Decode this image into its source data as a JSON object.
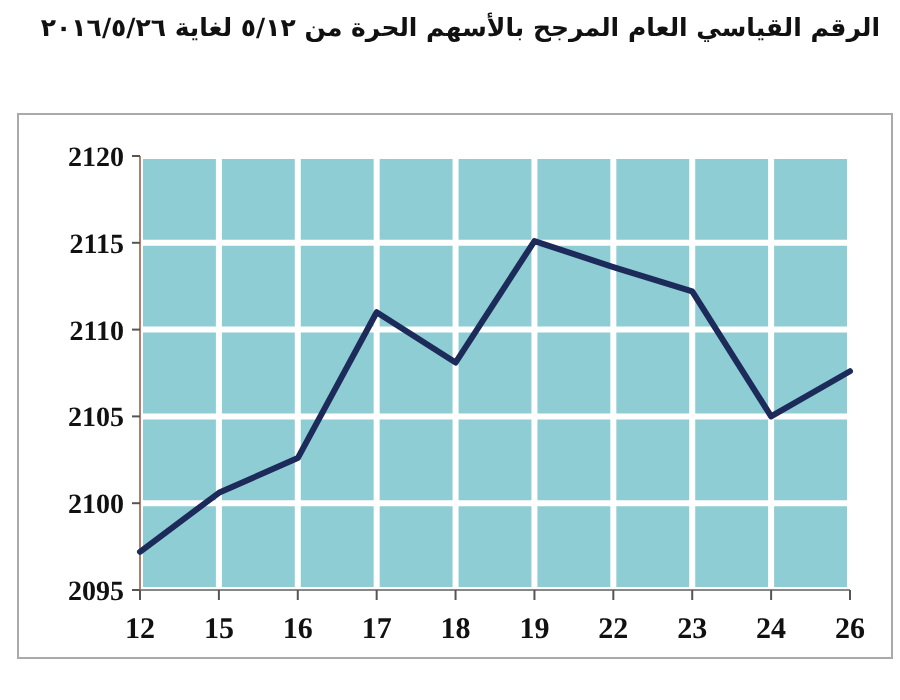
{
  "chart_data": {
    "type": "line",
    "title": "الرقم القياسي العام المرجح بالأسهم الحرة من ٥/١٢ لغاية ٢٠١٦/٥/٢٦",
    "categories": [
      "12",
      "15",
      "16",
      "17",
      "18",
      "19",
      "22",
      "23",
      "24",
      "26"
    ],
    "series": [
      {
        "color": "#1c2b5a",
        "values": [
          2097.2,
          2100.6,
          2102.6,
          2111,
          2108.1,
          2115.1,
          2113.6,
          2112.2,
          2105,
          2107.6
        ]
      }
    ],
    "ylim": [
      2095,
      2120
    ],
    "yticks": [
      2095,
      2100,
      2105,
      2110,
      2115,
      2120
    ],
    "grid": true
  }
}
